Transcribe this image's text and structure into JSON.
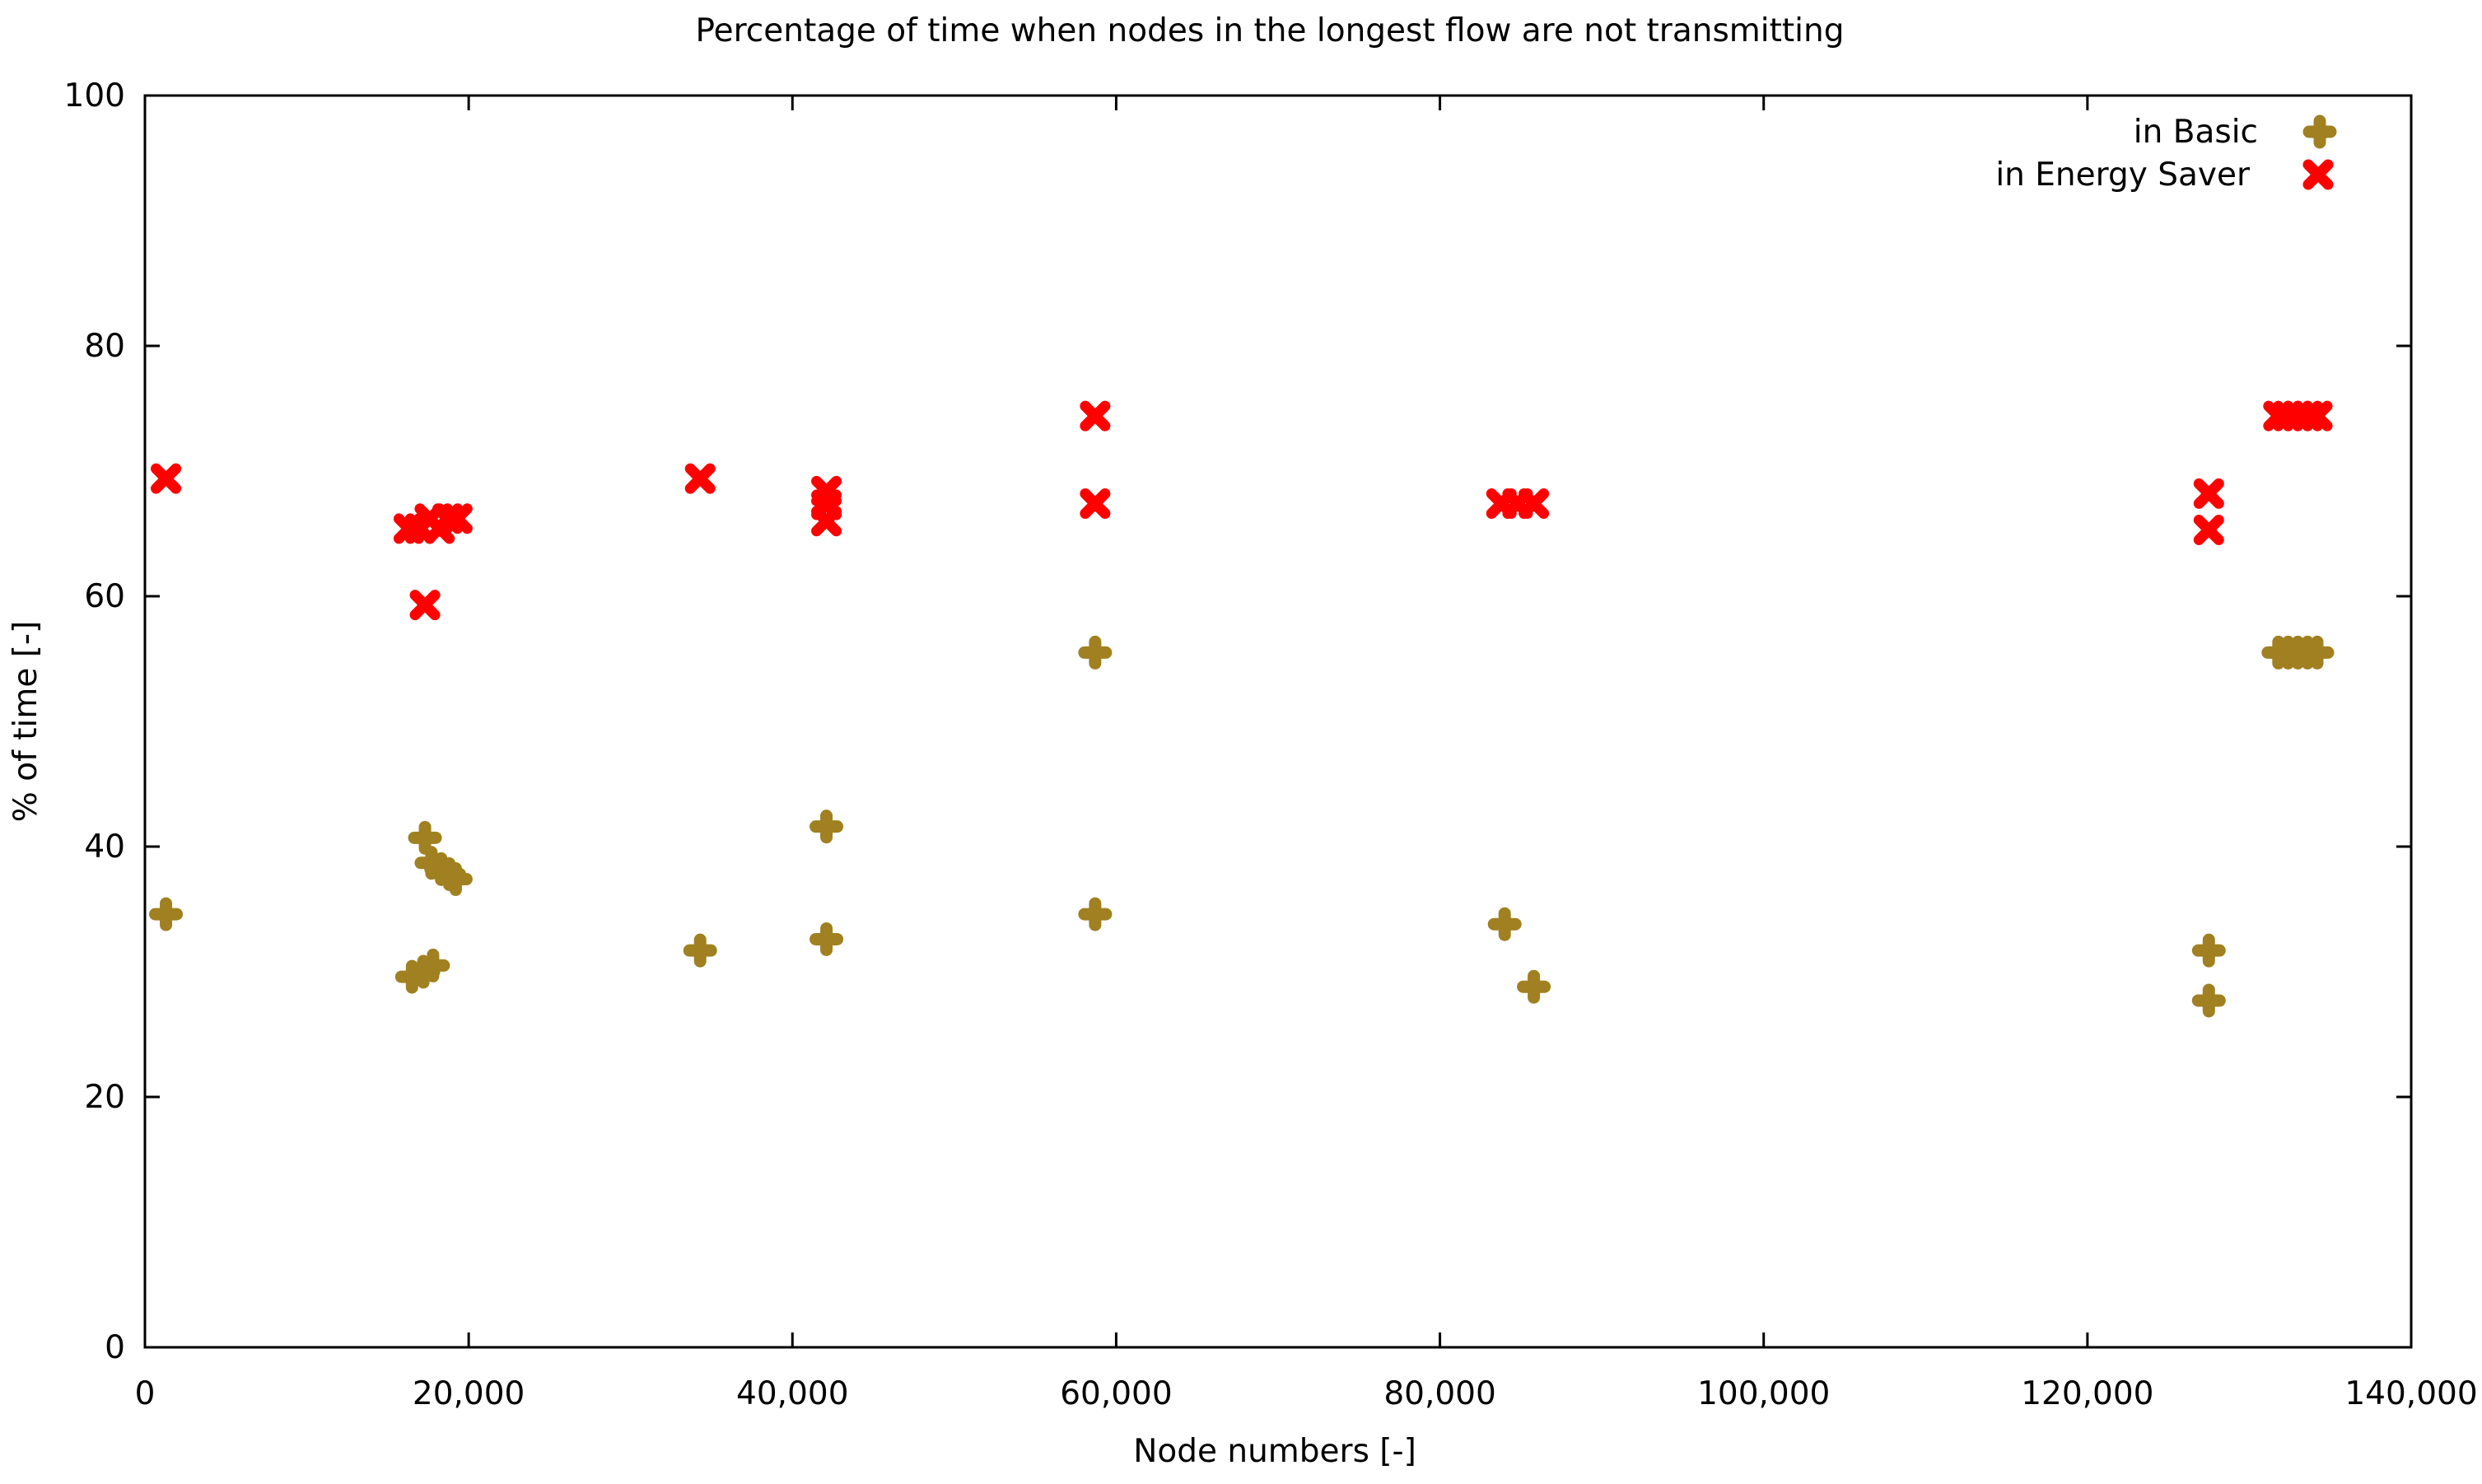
{
  "chart_data": {
    "type": "scatter",
    "title": "Percentage of time when nodes in the longest flow are not transmitting",
    "xlabel": "Node numbers [-]",
    "ylabel": "% of time [-]",
    "xlim": [
      0,
      140000
    ],
    "ylim": [
      0,
      100
    ],
    "x_ticks": [
      0,
      20000,
      40000,
      60000,
      80000,
      100000,
      120000,
      140000
    ],
    "x_tick_labels": [
      "0",
      "20,000",
      "40,000",
      "60,000",
      "80,000",
      "100,000",
      "120,000",
      "140,000"
    ],
    "y_ticks": [
      0,
      20,
      40,
      60,
      80,
      100
    ],
    "y_tick_labels": [
      "0",
      "20",
      "40",
      "60",
      "80",
      "100"
    ],
    "grid": false,
    "legend_position": "top-right",
    "series": [
      {
        "name": "in Basic",
        "marker": "filled-cross",
        "color": "#a08020",
        "points": [
          {
            "x": 1300,
            "y": 34.6
          },
          {
            "x": 16500,
            "y": 29.6
          },
          {
            "x": 17200,
            "y": 30.0
          },
          {
            "x": 17800,
            "y": 30.5
          },
          {
            "x": 17300,
            "y": 40.7
          },
          {
            "x": 17700,
            "y": 38.7
          },
          {
            "x": 18300,
            "y": 38.2
          },
          {
            "x": 18800,
            "y": 37.8
          },
          {
            "x": 19200,
            "y": 37.4
          },
          {
            "x": 34300,
            "y": 31.7
          },
          {
            "x": 42100,
            "y": 41.6
          },
          {
            "x": 42100,
            "y": 32.6
          },
          {
            "x": 58700,
            "y": 55.5
          },
          {
            "x": 58700,
            "y": 34.6
          },
          {
            "x": 84000,
            "y": 33.8
          },
          {
            "x": 85800,
            "y": 28.8
          },
          {
            "x": 127500,
            "y": 31.7
          },
          {
            "x": 127500,
            "y": 27.7
          },
          {
            "x": 131800,
            "y": 55.5
          },
          {
            "x": 132400,
            "y": 55.5
          },
          {
            "x": 133000,
            "y": 55.5
          },
          {
            "x": 133600,
            "y": 55.5
          },
          {
            "x": 134200,
            "y": 55.5
          }
        ]
      },
      {
        "name": "in Energy Saver",
        "marker": "x",
        "color": "#ff0000",
        "points": [
          {
            "x": 1300,
            "y": 69.4
          },
          {
            "x": 16300,
            "y": 65.4
          },
          {
            "x": 17000,
            "y": 65.4
          },
          {
            "x": 17600,
            "y": 66.2
          },
          {
            "x": 18200,
            "y": 65.4
          },
          {
            "x": 18700,
            "y": 66.2
          },
          {
            "x": 19300,
            "y": 66.2
          },
          {
            "x": 17300,
            "y": 59.3
          },
          {
            "x": 34300,
            "y": 69.4
          },
          {
            "x": 42100,
            "y": 68.4
          },
          {
            "x": 42100,
            "y": 67.3
          },
          {
            "x": 42100,
            "y": 66.0
          },
          {
            "x": 58700,
            "y": 74.4
          },
          {
            "x": 58700,
            "y": 67.4
          },
          {
            "x": 83800,
            "y": 67.4
          },
          {
            "x": 84800,
            "y": 67.4
          },
          {
            "x": 85800,
            "y": 67.4
          },
          {
            "x": 127500,
            "y": 68.2
          },
          {
            "x": 127500,
            "y": 65.3
          },
          {
            "x": 131800,
            "y": 74.4
          },
          {
            "x": 132400,
            "y": 74.4
          },
          {
            "x": 133000,
            "y": 74.4
          },
          {
            "x": 133600,
            "y": 74.4
          },
          {
            "x": 134200,
            "y": 74.4
          }
        ]
      }
    ]
  }
}
